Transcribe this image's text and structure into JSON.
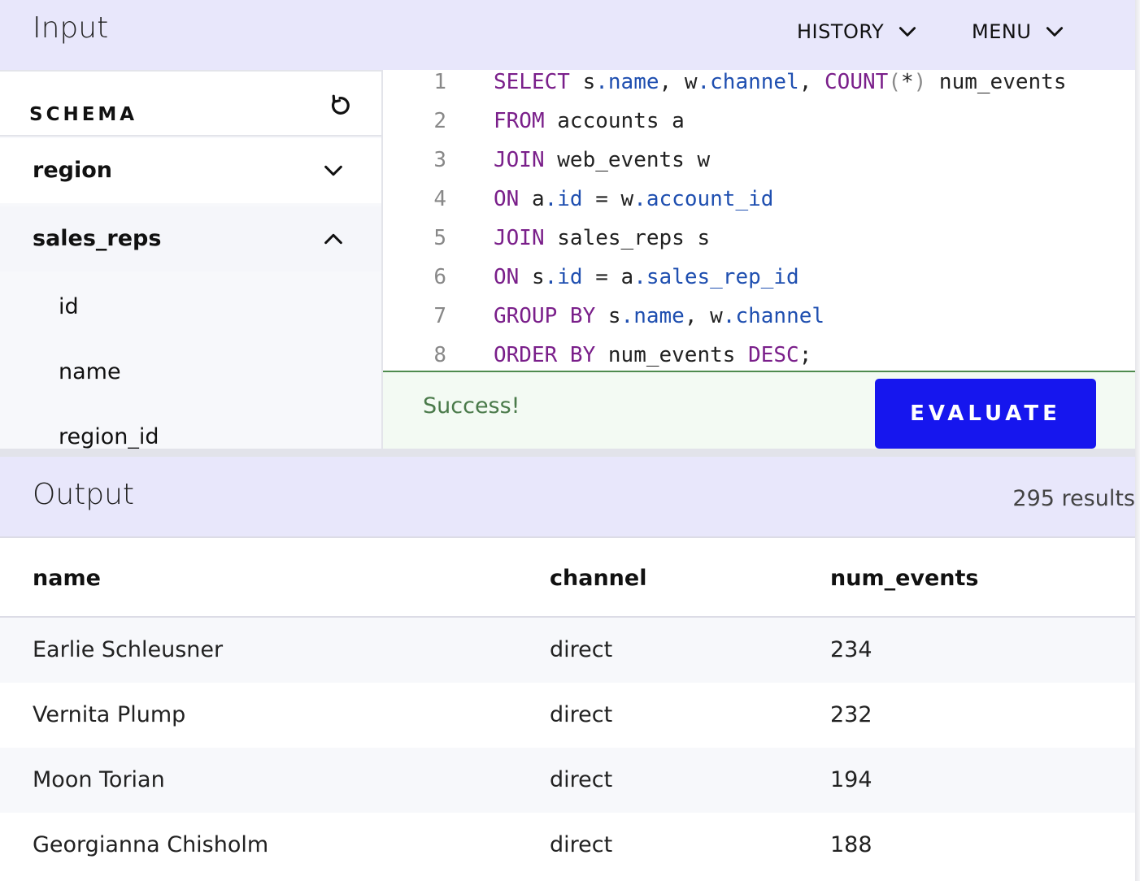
{
  "input_header": {
    "title": "Input",
    "history_label": "HISTORY",
    "menu_label": "MENU"
  },
  "schema": {
    "label": "SCHEMA",
    "tables": [
      {
        "name": "region",
        "expanded": false
      },
      {
        "name": "sales_reps",
        "expanded": true,
        "columns": [
          "id",
          "name",
          "region_id"
        ]
      }
    ]
  },
  "editor": {
    "lines": [
      {
        "n": "1",
        "tokens": [
          [
            "kw",
            "SELECT"
          ],
          [
            "t",
            " s"
          ],
          [
            "prop",
            ".name"
          ],
          [
            "t",
            ", w"
          ],
          [
            "prop",
            ".channel"
          ],
          [
            "t",
            ", "
          ],
          [
            "kw",
            "COUNT"
          ],
          [
            "paren",
            "("
          ],
          [
            "t",
            "*"
          ],
          [
            "paren",
            ")"
          ],
          [
            "t",
            " num_events"
          ]
        ]
      },
      {
        "n": "2",
        "tokens": [
          [
            "kw",
            "FROM"
          ],
          [
            "t",
            " accounts a"
          ]
        ]
      },
      {
        "n": "3",
        "tokens": [
          [
            "kw",
            "JOIN"
          ],
          [
            "t",
            " web_events w"
          ]
        ]
      },
      {
        "n": "4",
        "tokens": [
          [
            "kw",
            "ON"
          ],
          [
            "t",
            " a"
          ],
          [
            "prop",
            ".id"
          ],
          [
            "t",
            " = w"
          ],
          [
            "prop",
            ".account_id"
          ]
        ]
      },
      {
        "n": "5",
        "tokens": [
          [
            "kw",
            "JOIN"
          ],
          [
            "t",
            " sales_reps s"
          ]
        ]
      },
      {
        "n": "6",
        "tokens": [
          [
            "kw",
            "ON"
          ],
          [
            "t",
            " s"
          ],
          [
            "prop",
            ".id"
          ],
          [
            "t",
            " = a"
          ],
          [
            "prop",
            ".sales_rep_id"
          ]
        ]
      },
      {
        "n": "7",
        "tokens": [
          [
            "kw",
            "GROUP BY"
          ],
          [
            "t",
            " s"
          ],
          [
            "prop",
            ".name"
          ],
          [
            "t",
            ", w"
          ],
          [
            "prop",
            ".channel"
          ]
        ]
      },
      {
        "n": "8",
        "tokens": [
          [
            "kw",
            "ORDER BY"
          ],
          [
            "t",
            " num_events "
          ],
          [
            "kw",
            "DESC"
          ],
          [
            "t",
            ";"
          ]
        ]
      }
    ]
  },
  "status": {
    "message": "Success!",
    "evaluate_label": "EVALUATE"
  },
  "output": {
    "title": "Output",
    "count": "295 results",
    "columns": [
      "name",
      "channel",
      "num_events"
    ],
    "rows": [
      [
        "Earlie Schleusner",
        "direct",
        "234"
      ],
      [
        "Vernita Plump",
        "direct",
        "232"
      ],
      [
        "Moon Torian",
        "direct",
        "194"
      ],
      [
        "Georgianna Chisholm",
        "direct",
        "188"
      ]
    ]
  },
  "colors": {
    "header_bg": "#e8e7fb",
    "keyword": "#7a1f8a",
    "property": "#1f4fb0",
    "evaluate_bg": "#1616ee",
    "success_text": "#4a7a4a"
  },
  "icons": {
    "history": "chevron-down-icon",
    "menu": "chevron-down-icon",
    "reset": "reset-icon",
    "region": "chevron-down-icon",
    "sales_reps": "chevron-up-icon"
  }
}
